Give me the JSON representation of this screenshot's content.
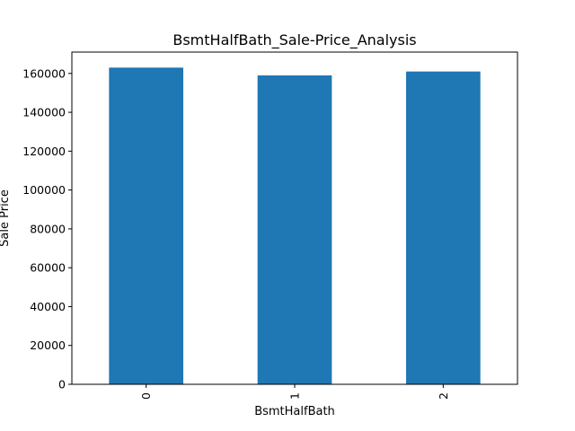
{
  "chart_data": {
    "type": "bar",
    "title": "BsmtHalfBath_Sale-Price_Analysis",
    "xlabel": "BsmtHalfBath",
    "ylabel": "Sale Price",
    "categories": [
      "0",
      "1",
      "2"
    ],
    "values": [
      163000,
      159000,
      161000
    ],
    "ylim": [
      0,
      171000
    ],
    "yticks": [
      0,
      20000,
      40000,
      60000,
      80000,
      100000,
      120000,
      140000,
      160000
    ],
    "ytick_labels": [
      "0",
      "20000",
      "40000",
      "60000",
      "80000",
      "100000",
      "120000",
      "140000",
      "160000"
    ],
    "xtick_rotation": "vertical",
    "grid": false,
    "legend": "none",
    "bar_color": "#1f77b4"
  }
}
